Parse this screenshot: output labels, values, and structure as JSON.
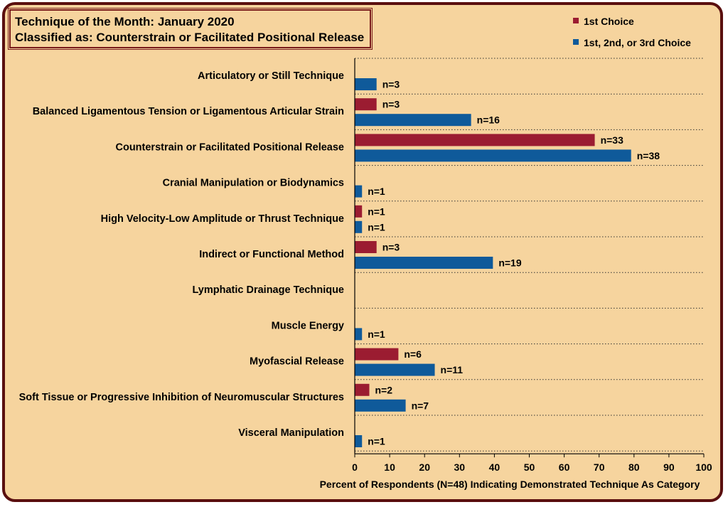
{
  "title_box": {
    "line1": "Technique of the Month: January 2020",
    "line2": "Classified as: Counterstrain or Facilitated Positional Release"
  },
  "colors": {
    "frame_border": "#5a0f0f",
    "background": "#f6d49e",
    "first_choice": "#9b1c31",
    "top3_choice": "#0f5a9a"
  },
  "chart_data": {
    "type": "bar",
    "orientation": "horizontal",
    "categories": [
      "Articulatory or Still Technique",
      "Balanced Ligamentous Tension or Ligamentous Articular Strain",
      "Counterstrain or Facilitated Positional Release",
      "Cranial Manipulation or Biodynamics",
      "High Velocity-Low Amplitude or Thrust Technique",
      "Indirect or Functional Method",
      "Lymphatic Drainage Technique",
      "Muscle Energy",
      "Myofascial Release",
      "Soft Tissue or Progressive Inhibition of Neuromuscular Structures",
      "Visceral Manipulation"
    ],
    "series": [
      {
        "name": "1st Choice",
        "color": "#9b1c31",
        "values": [
          null,
          6.25,
          68.75,
          null,
          2.08,
          6.25,
          null,
          null,
          12.5,
          4.17,
          null
        ],
        "labels": [
          null,
          "n=3",
          "n=33",
          null,
          "n=1",
          "n=3",
          null,
          null,
          "n=6",
          "n=2",
          null
        ]
      },
      {
        "name": "1st, 2nd, or 3rd Choice",
        "color": "#0f5a9a",
        "values": [
          6.25,
          33.33,
          79.17,
          2.08,
          2.08,
          39.58,
          null,
          2.08,
          22.92,
          14.58,
          2.08
        ],
        "labels": [
          "n=3",
          "n=16",
          "n=38",
          "n=1",
          "n=1",
          "n=19",
          null,
          "n=1",
          "n=11",
          "n=7",
          "n=1"
        ]
      }
    ],
    "xlabel": "Percent of Respondents (N=48) Indicating Demonstrated Technique As Category",
    "xlim": [
      0,
      100
    ],
    "xticks": [
      "0",
      "10",
      "20",
      "30",
      "40",
      "50",
      "60",
      "70",
      "80",
      "90",
      "100"
    ],
    "legend_position": "top-right",
    "grid": "dotted horizontal separators between categories"
  }
}
